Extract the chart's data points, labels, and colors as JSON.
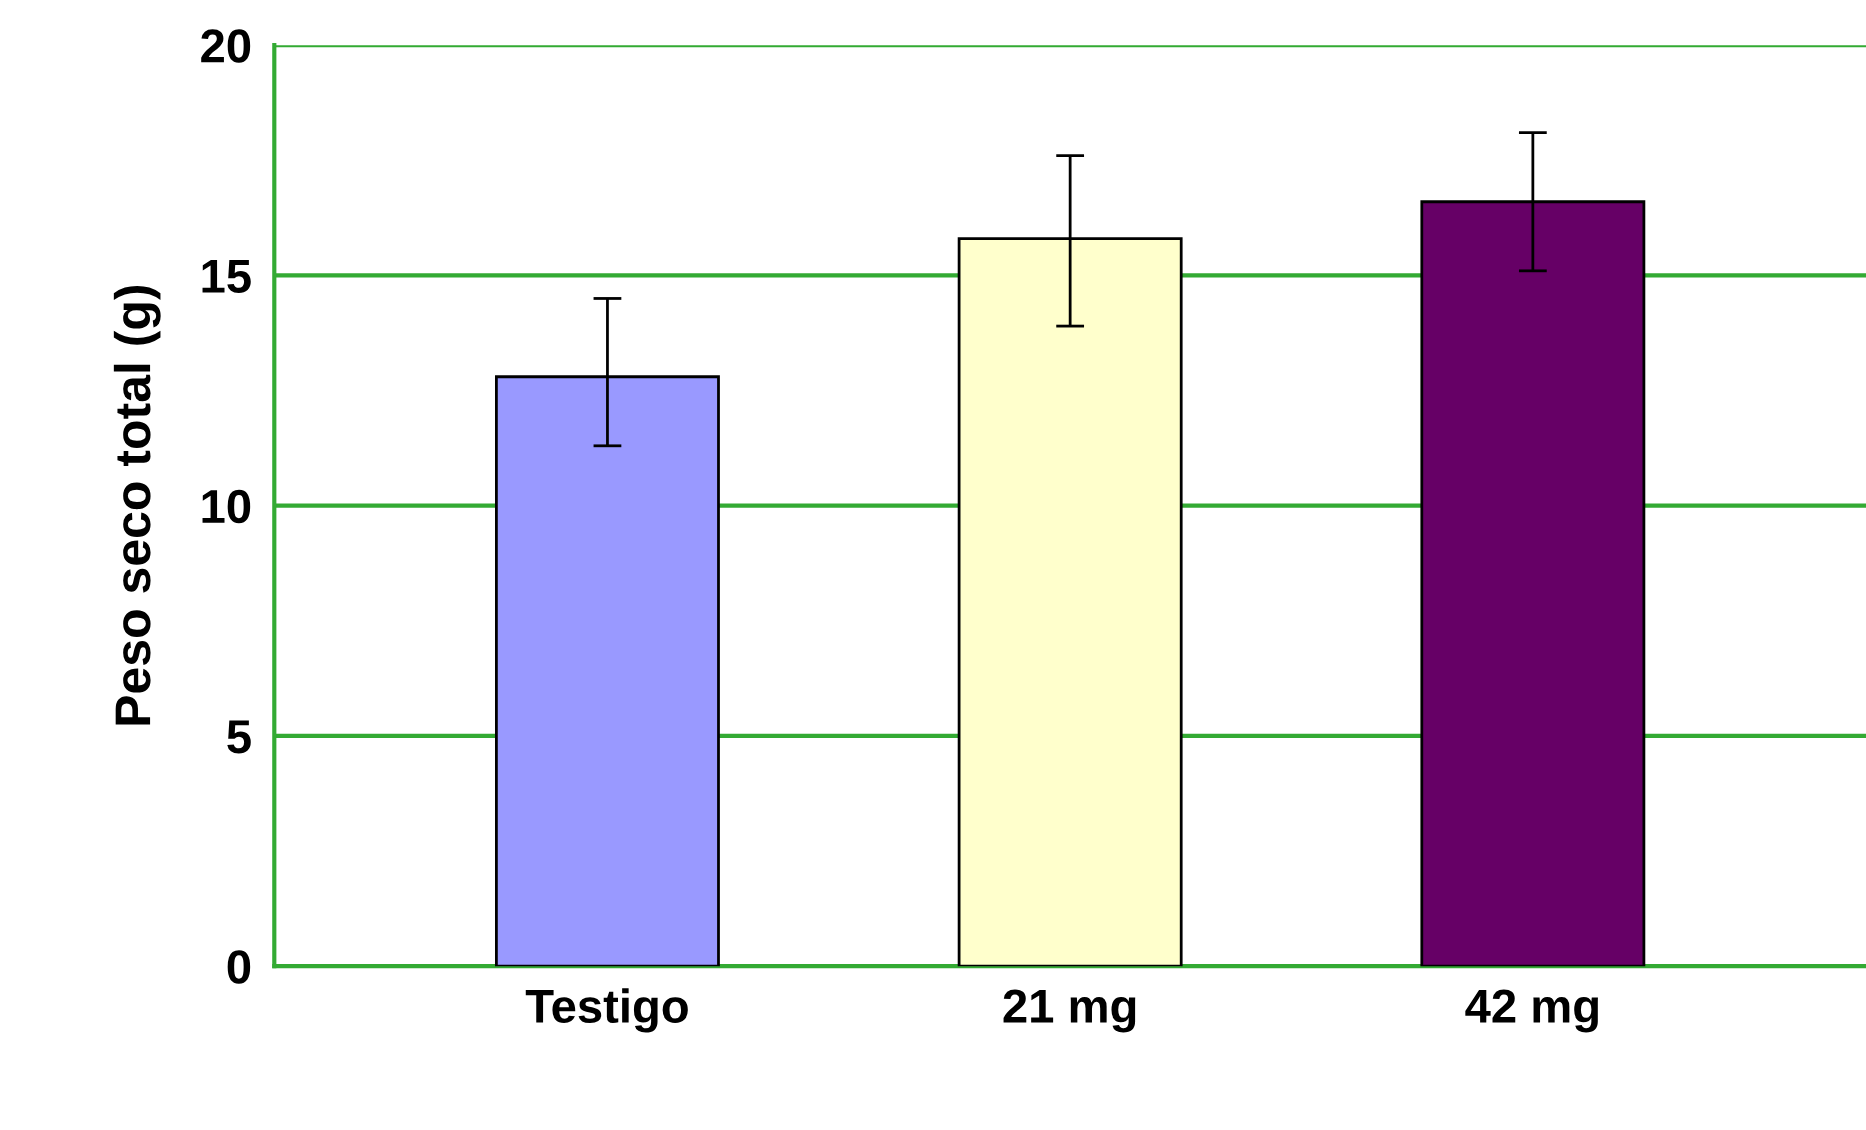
{
  "chart_data": {
    "type": "bar",
    "ylabel": "Peso seco total (g)",
    "categories": [
      "Testigo",
      "21 mg",
      "42 mg"
    ],
    "values": [
      12.8,
      15.8,
      16.6
    ],
    "errors": [
      [
        11.3,
        14.5
      ],
      [
        13.9,
        17.6
      ],
      [
        15.1,
        18.1
      ]
    ],
    "colors": [
      "#9999ff",
      "#ffffcc",
      "#660066"
    ],
    "ylim": [
      0,
      20
    ],
    "yticks": [
      0,
      5,
      10,
      15,
      20
    ],
    "grid": "y",
    "legend": false
  }
}
